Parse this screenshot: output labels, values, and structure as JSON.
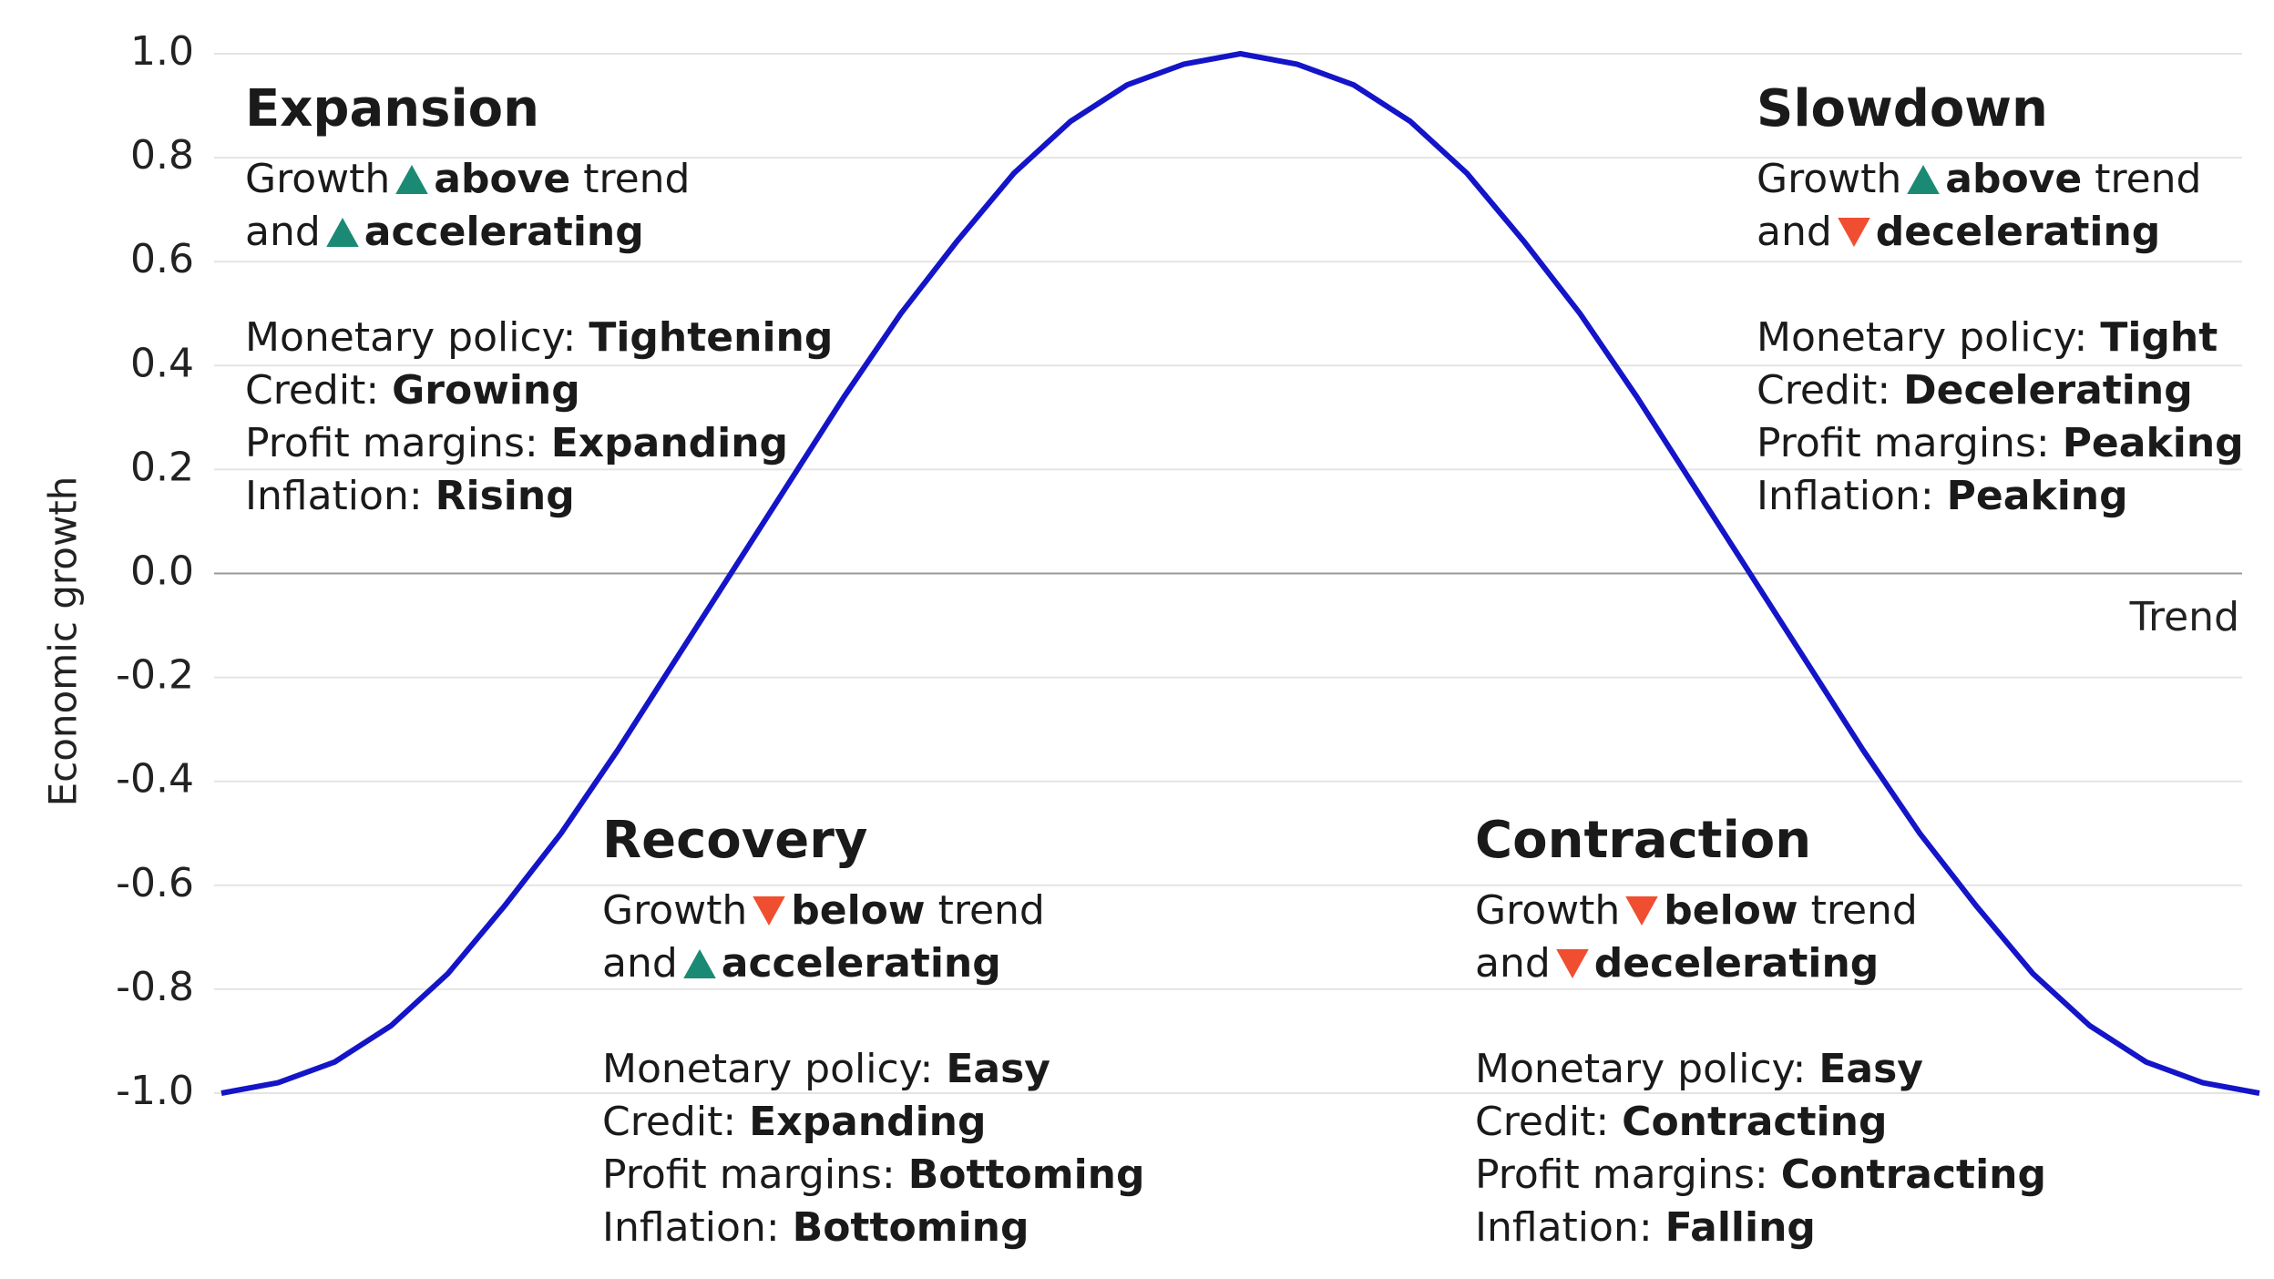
{
  "chart_data": {
    "type": "line",
    "categories": [
      null,
      null,
      null,
      null,
      null,
      null,
      null,
      null,
      null,
      null,
      null,
      null,
      null,
      null,
      null,
      null,
      null,
      null,
      null,
      null,
      null,
      null,
      null,
      null,
      null,
      null,
      null,
      null,
      null,
      null,
      null,
      null,
      null,
      null,
      null,
      null,
      null
    ],
    "values": [
      -1,
      -0.98,
      -0.94,
      -0.87,
      -0.77,
      -0.64,
      -0.5,
      -0.34,
      -0.17,
      0,
      0.17,
      0.34,
      0.5,
      0.64,
      0.77,
      0.87,
      0.94,
      0.98,
      1,
      0.98,
      0.94,
      0.87,
      0.77,
      0.64,
      0.5,
      0.34,
      0.17,
      0,
      -0.17,
      -0.34,
      -0.5,
      -0.64,
      -0.77,
      -0.87,
      -0.94,
      -0.98,
      -1
    ],
    "color": "#1414c8",
    "ylim": [
      -1,
      1
    ],
    "yticks": [
      {
        "value": -1,
        "label": "-1.0"
      },
      -0.8,
      -0.6,
      -0.4,
      -0.2,
      {
        "value": 0,
        "label": "0.0"
      },
      0.2,
      0.4,
      0.6,
      0.8,
      {
        "value": 1,
        "label": "1.0"
      }
    ],
    "grid": true,
    "ylabel": "Economic growth",
    "annotation": "Trend"
  },
  "phases": [
    {
      "title": "Expansion",
      "growth": [
        "Growth",
        "above",
        "trend"
      ],
      "pace": [
        "and",
        "accelerating"
      ],
      "details": [
        [
          "Monetary policy:",
          "Tightening"
        ],
        [
          "Credit:",
          "Growing"
        ],
        [
          "Profit margins:",
          "Expanding"
        ],
        [
          "Inflation:",
          "Rising"
        ]
      ]
    },
    {
      "title": "Slowdown",
      "growth": [
        "Growth",
        "above",
        "trend"
      ],
      "pace": [
        "and",
        "decelerating"
      ],
      "details": [
        [
          "Monetary policy:",
          "Tight"
        ],
        [
          "Credit:",
          "Decelerating"
        ],
        [
          "Profit margins:",
          "Peaking"
        ],
        [
          "Inflation:",
          "Peaking"
        ]
      ]
    },
    {
      "title": "Recovery",
      "growth": [
        "Growth",
        "below",
        "trend"
      ],
      "pace": [
        "and",
        "accelerating"
      ],
      "details": [
        [
          "Monetary policy:",
          "Easy"
        ],
        [
          "Credit:",
          "Expanding"
        ],
        [
          "Profit margins:",
          "Bottoming"
        ],
        [
          "Inflation:",
          "Bottoming"
        ]
      ]
    },
    {
      "title": "Contraction",
      "growth": [
        "Growth",
        "below",
        "trend"
      ],
      "pace": [
        "and",
        "decelerating"
      ],
      "details": [
        [
          "Monetary policy:",
          "Easy"
        ],
        [
          "Credit:",
          "Contracting"
        ],
        [
          "Profit margins:",
          "Contracting"
        ],
        [
          "Inflation:",
          "Falling"
        ]
      ]
    }
  ]
}
